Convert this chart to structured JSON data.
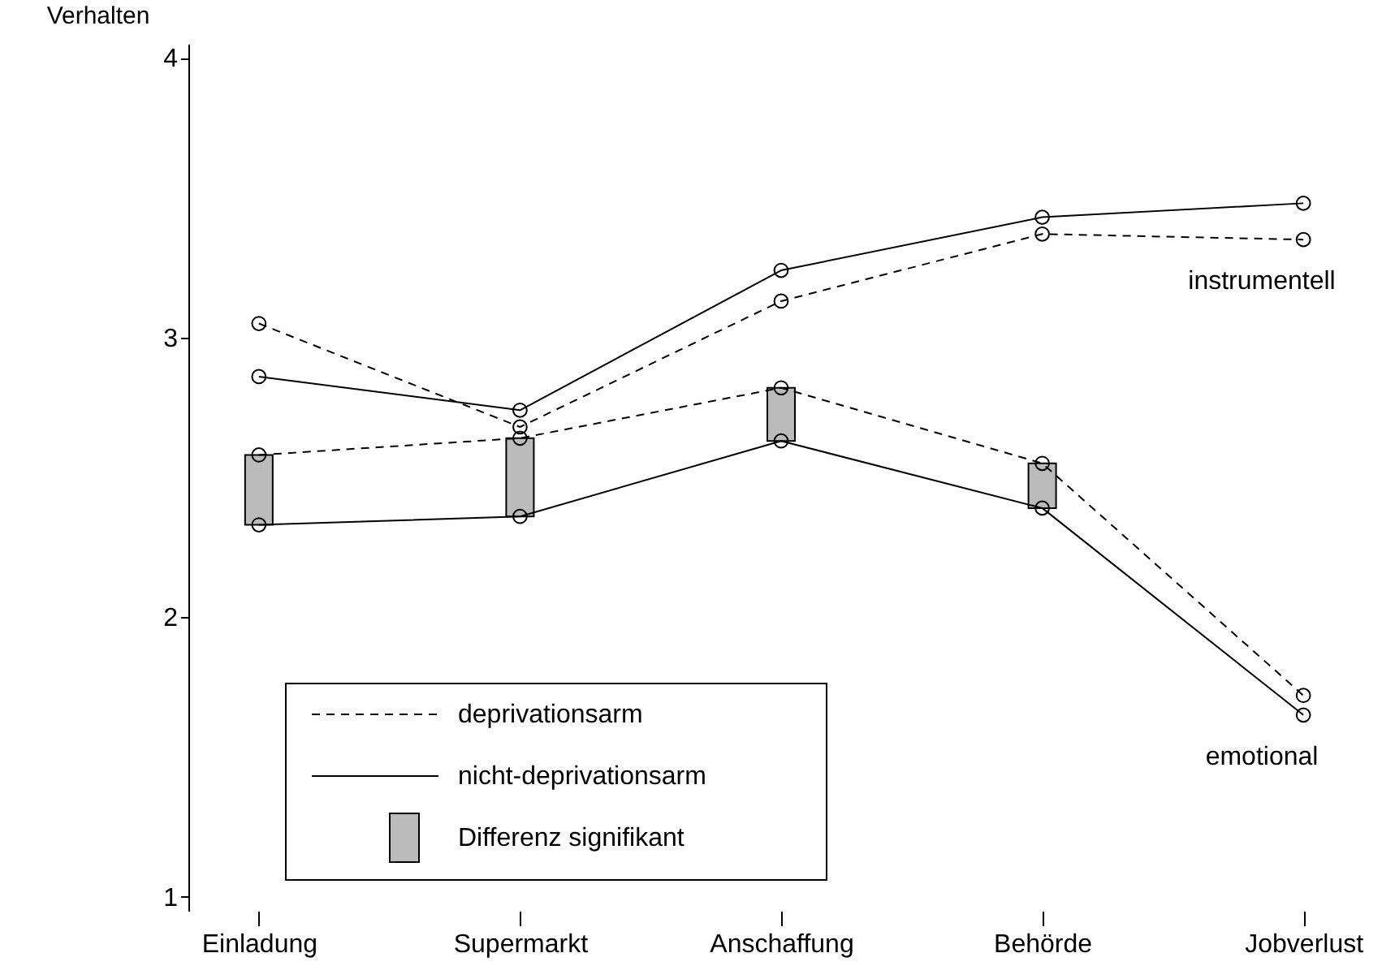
{
  "chart_data": {
    "type": "line",
    "ylabel": "Verhalten",
    "categories": [
      "Einladung",
      "Supermarkt",
      "Anschaffung",
      "Behörde",
      "Jobverlust"
    ],
    "ylim": [
      0.95,
      4.05
    ],
    "yticks": [
      1,
      2,
      3,
      4
    ],
    "marker": "circle",
    "legend": "bottom left",
    "series": [
      {
        "type": "bar",
        "name": "Differenz signifikant",
        "color": "#bbbbbb",
        "base": [
          2.33,
          2.36,
          2.63,
          2.39,
          null
        ],
        "values": [
          0.25,
          0.28,
          0.19,
          0.16,
          null
        ]
      },
      {
        "name": "deprivationsarm",
        "color": "#000000",
        "line_style": "dashed",
        "values": [
          3.05,
          2.68,
          3.13,
          3.37,
          3.35
        ]
      },
      {
        "name": "nicht-deprivationsarm",
        "color": "#000000",
        "line_style": "solid",
        "values": [
          2.86,
          2.74,
          3.24,
          3.43,
          3.48
        ]
      },
      {
        "color": "#000000",
        "line_style": "dashed",
        "values": [
          2.58,
          2.64,
          2.82,
          2.55,
          1.72
        ]
      },
      {
        "color": "#000000",
        "line_style": "solid",
        "values": [
          2.33,
          2.36,
          2.63,
          2.39,
          1.65
        ]
      }
    ],
    "annotations": [
      "instrumentell",
      "emotional"
    ]
  }
}
